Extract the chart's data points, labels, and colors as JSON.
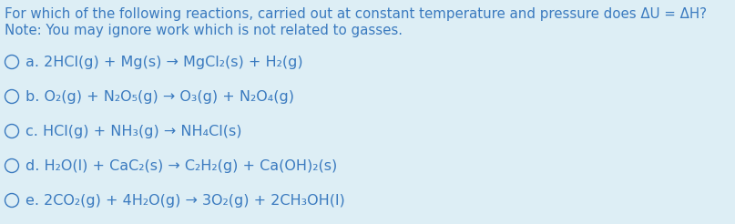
{
  "background_color": "#ddeef5",
  "text_color": "#3a7abf",
  "title_line1": "For which of the following reactions, carried out at constant temperature and pressure does ΔU = ΔH?",
  "title_line2": "Note: You may ignore work which is not related to gasses.",
  "line_a": "a. 2HCl(g) + Mg(s) → MgCl₂(s) + H₂(g)",
  "line_b": "b. O₂(g) + N₂O₅(g) → O₃(g) + N₂O₄(g)",
  "line_c": "c. HCl(g) + NH₃(g) → NH₄Cl(s)",
  "line_d": "d. H₂O(l) + CaC₂(s) → C₂H₂(g) + Ca(OH)₂(s)",
  "line_e": "e. 2CO₂(g) + 4H₂O(g) → 3O₂(g) + 2CH₃OH(l)",
  "font_size_title": 10.8,
  "font_size_options": 11.5,
  "figsize": [
    8.07,
    2.46
  ],
  "dpi": 100
}
